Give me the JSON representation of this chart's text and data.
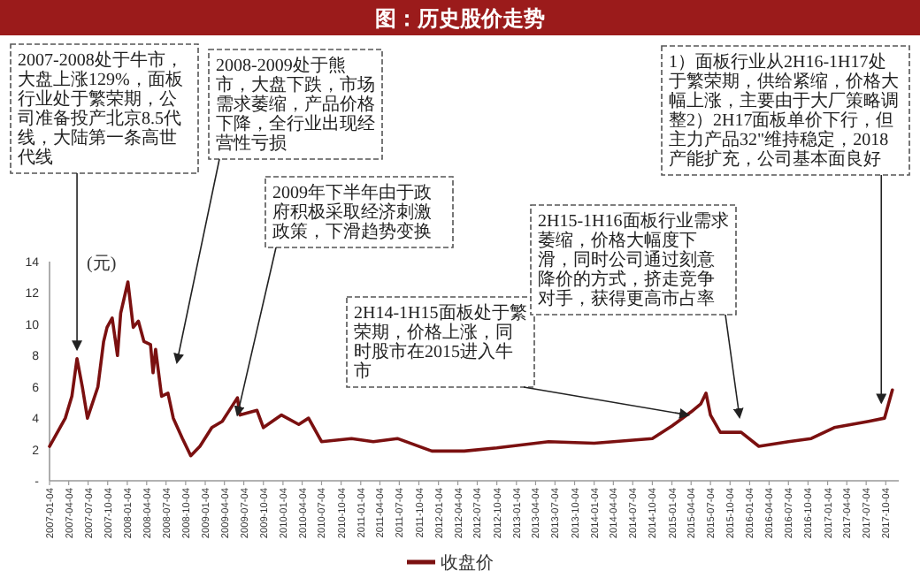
{
  "chart_data": {
    "type": "line",
    "title": "图：历史股价走势",
    "ylabel": "(元)",
    "legend": "bottom",
    "x": [
      "2007-01-04",
      "2007-03-19",
      "2007-04-19",
      "2007-05-13",
      "2007-06-07",
      "2007-07-01",
      "2007-08-19",
      "2007-09-15",
      "2007-10-01",
      "2007-10-25",
      "2007-11-19",
      "2007-12-04",
      "2008-01-07",
      "2008-02-01",
      "2008-02-25",
      "2008-03-22",
      "2008-04-22",
      "2008-05-04",
      "2008-05-16",
      "2008-06-13",
      "2008-07-13",
      "2008-08-07",
      "2008-09-19",
      "2008-10-28",
      "2008-12-10",
      "2009-02-04",
      "2009-03-25",
      "2009-06-04",
      "2009-06-16",
      "2009-09-04",
      "2009-10-04",
      "2009-12-28",
      "2010-03-19",
      "2010-05-04",
      "2010-07-04",
      "2010-11-22",
      "2011-03-04",
      "2011-06-25",
      "2011-12-04",
      "2012-05-04",
      "2012-10-04",
      "2013-06-04",
      "2014-01-04",
      "2014-10-04",
      "2015-01-04",
      "2015-04-04",
      "2015-05-19",
      "2015-06-13",
      "2015-07-04",
      "2015-08-19",
      "2015-11-25",
      "2016-02-16",
      "2016-07-04",
      "2016-10-19",
      "2017-02-04",
      "2017-07-16",
      "2017-09-28",
      "2017-11-04"
    ],
    "series": [
      {
        "name": "收盘价",
        "color": "#7b1010",
        "values": [
          2.2,
          4.0,
          5.4,
          7.8,
          6.0,
          4.0,
          6.0,
          8.9,
          9.8,
          10.4,
          8.0,
          10.7,
          12.7,
          9.8,
          10.2,
          8.9,
          8.7,
          6.9,
          8.4,
          5.4,
          5.6,
          4.0,
          2.7,
          1.6,
          2.2,
          3.4,
          3.8,
          5.3,
          4.2,
          4.5,
          3.4,
          4.2,
          3.6,
          4.0,
          2.5,
          2.7,
          2.5,
          2.7,
          1.9,
          1.9,
          2.1,
          2.5,
          2.4,
          2.7,
          3.5,
          4.4,
          4.9,
          5.6,
          4.2,
          3.1,
          3.1,
          2.2,
          2.5,
          2.7,
          3.4,
          3.8,
          4.0,
          5.8
        ]
      }
    ],
    "xlim": [
      "2007-01-04",
      "2017-12-04"
    ],
    "xticks": [
      "2007-01-04",
      "2007-04-04",
      "2007-07-04",
      "2007-10-04",
      "2008-01-04",
      "2008-04-04",
      "2008-07-04",
      "2008-10-04",
      "2009-01-04",
      "2009-04-04",
      "2009-07-04",
      "2009-10-04",
      "2010-01-04",
      "2010-04-04",
      "2010-07-04",
      "2010-10-04",
      "2011-01-04",
      "2011-04-04",
      "2011-07-04",
      "2011-10-04",
      "2012-01-04",
      "2012-04-04",
      "2012-07-04",
      "2012-10-04",
      "2013-01-04",
      "2013-04-04",
      "2013-07-04",
      "2013-10-04",
      "2014-01-04",
      "2014-04-04",
      "2014-07-04",
      "2014-10-04",
      "2015-01-04",
      "2015-04-04",
      "2015-07-04",
      "2015-10-04",
      "2016-01-04",
      "2016-04-04",
      "2016-07-04",
      "2016-10-04",
      "2017-01-04",
      "2017-04-04",
      "2017-07-04",
      "2017-10-04"
    ],
    "ylim": [
      0,
      14
    ],
    "yticks": [
      {
        "value": 0,
        "label": "-"
      },
      2,
      4,
      6,
      8,
      10,
      12,
      14
    ],
    "annotations": [
      {
        "text": "2007-2008处于牛市，大盘上涨129%，面板行业处于繁荣期，公司准备投产北京8.5代线，大陆第一条高世代线",
        "x": "2007-05-13",
        "y": 8.4
      },
      "2008-2009处于熊市，大盘下跌，市场需求萎缩，产品价格下降，全行业出现经营性亏损",
      {
        "text": "2009年下半年由于政府积极采取经济刺激政策，下滑趋势变换",
        "x": "2009-06-04",
        "y": 4.2
      },
      {
        "text": "2H14-1H15面板处于繁荣期，价格上涨，同时股市在2015进入牛市",
        "x": "2015-03-22",
        "y": 4.2
      },
      "2H15-1H16面板行业需求萎缩，价格大幅度下滑，同时公司通过刻意降价的方式，挤走竞争对手，获得更高市占率",
      {
        "text": "1）面板行业从2H16-1H17处于繁荣期，供给紧缩，价格大幅上涨，主要由于大厂策略调整2）2H17面板单价下行，但主力产品32\"维持稳定，2018产能扩充，公司基本面良好",
        "x": "2017-09-13",
        "y": 5.0
      }
    ]
  }
}
